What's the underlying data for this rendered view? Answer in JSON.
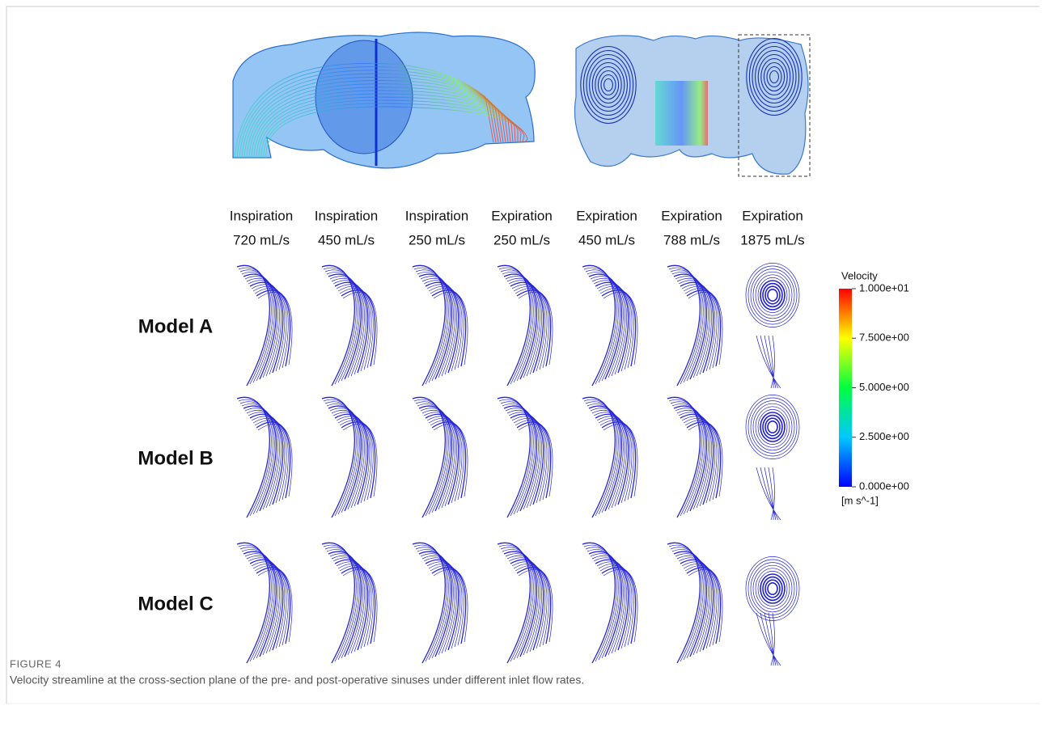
{
  "figure": {
    "columns": [
      {
        "line1": "Inspiration",
        "line2": "720 mL/s"
      },
      {
        "line1": "Inspiration",
        "line2": "450 mL/s"
      },
      {
        "line1": "Inspiration",
        "line2": "250 mL/s"
      },
      {
        "line1": "Expiration",
        "line2": "250 mL/s"
      },
      {
        "line1": "Expiration",
        "line2": "450 mL/s"
      },
      {
        "line1": "Expiration",
        "line2": "788 mL/s"
      },
      {
        "line1": "Expiration",
        "line2": "1875 mL/s"
      }
    ],
    "rows": [
      "Model A",
      "Model B",
      "Model C"
    ],
    "colorbar": {
      "title": "Velocity",
      "labels": [
        "1.000e+01",
        "7.500e+00",
        "5.000e+00",
        "2.500e+00",
        "0.000e+00"
      ],
      "unit": "[m s^-1]"
    },
    "caption": {
      "label": "FIGURE 4",
      "text": "Velocity streamline at the cross-section plane of the pre- and post-operative sinuses under different inlet flow rates."
    }
  }
}
